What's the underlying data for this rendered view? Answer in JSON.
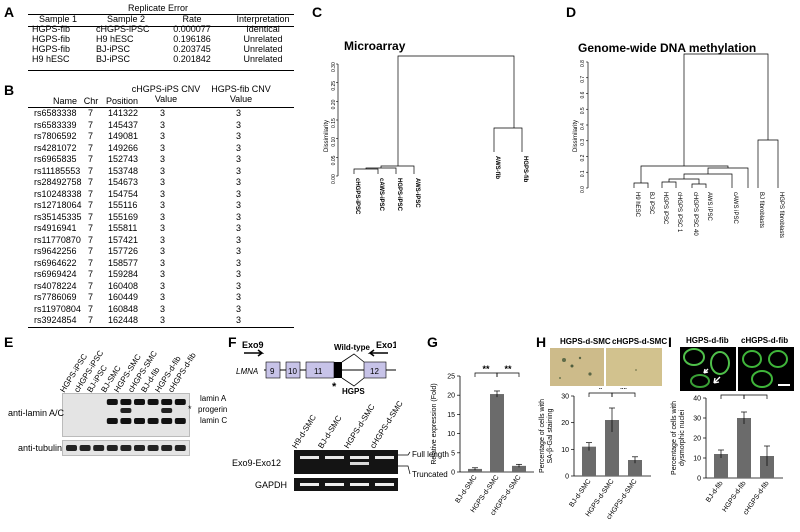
{
  "panels": {
    "a": "A",
    "b": "B",
    "c": "C",
    "d": "D",
    "e": "E",
    "f": "F",
    "g": "G",
    "h": "H",
    "i": "I"
  },
  "panel_a": {
    "title": "Replicate Error",
    "headers": [
      "Sample 1",
      "Sample 2",
      "Rate",
      "Interpretation"
    ],
    "rows": [
      [
        "HGPS-fib",
        "cHGPS-iPSC",
        "0.000077",
        "Identical"
      ],
      [
        "HGPS-fib",
        "H9 hESC",
        "0.196186",
        "Unrelated"
      ],
      [
        "HGPS-fib",
        "BJ-iPSC",
        "0.203745",
        "Unrelated"
      ],
      [
        "H9 hESC",
        "BJ-iPSC",
        "0.201842",
        "Unrelated"
      ]
    ]
  },
  "panel_b": {
    "headers": [
      "Name",
      "Chr",
      "Position",
      "cHGPS-iPS CNV Value",
      "HGPS-fib CNV Value"
    ],
    "rows": [
      [
        "rs6583338",
        "7",
        "141322",
        "3",
        "3"
      ],
      [
        "rs6583339",
        "7",
        "145437",
        "3",
        "3"
      ],
      [
        "rs7806592",
        "7",
        "149081",
        "3",
        "3"
      ],
      [
        "rs4281072",
        "7",
        "149266",
        "3",
        "3"
      ],
      [
        "rs6965835",
        "7",
        "152743",
        "3",
        "3"
      ],
      [
        "rs11185553",
        "7",
        "153748",
        "3",
        "3"
      ],
      [
        "rs28492758",
        "7",
        "154673",
        "3",
        "3"
      ],
      [
        "rs10248338",
        "7",
        "154754",
        "3",
        "3"
      ],
      [
        "rs12718064",
        "7",
        "155116",
        "3",
        "3"
      ],
      [
        "rs35145335",
        "7",
        "155169",
        "3",
        "3"
      ],
      [
        "rs4916941",
        "7",
        "155811",
        "3",
        "3"
      ],
      [
        "rs11770870",
        "7",
        "157421",
        "3",
        "3"
      ],
      [
        "rs9642256",
        "7",
        "157726",
        "3",
        "3"
      ],
      [
        "rs6964622",
        "7",
        "158577",
        "3",
        "3"
      ],
      [
        "rs6969424",
        "7",
        "159284",
        "3",
        "3"
      ],
      [
        "rs4078224",
        "7",
        "160408",
        "3",
        "3"
      ],
      [
        "rs7786069",
        "7",
        "160449",
        "3",
        "3"
      ],
      [
        "rs11970804",
        "7",
        "160848",
        "3",
        "3"
      ],
      [
        "rs3924854",
        "7",
        "162448",
        "3",
        "3"
      ]
    ]
  },
  "panel_c": {
    "title": "Microarray",
    "ylabel": "Dissimilarity",
    "yticks": [
      "0.00",
      "0.05",
      "0.10",
      "0.15",
      "0.20",
      "0.25",
      "0.30"
    ],
    "leaves": [
      "cHGPS-iPSC",
      "cAWS-iPSC",
      "HGPS-iPSC",
      "AWS-iPSC",
      "AWS-fib",
      "HGPS-fib"
    ]
  },
  "panel_d": {
    "title": "Genome-wide DNA methylation",
    "ylabel": "Dissimilarity",
    "yticks": [
      "0.0",
      "0.1",
      "0.2",
      "0.3",
      "0.4",
      "0.5",
      "0.6",
      "0.7",
      "0.8"
    ],
    "leaves": [
      "H9 hESC",
      "BJ iPSC",
      "HGPS iPSC",
      "cHGPS iPSC 1",
      "cHGPS iPSC 40",
      "AWS iPSC",
      "cAWS iPSC",
      "BJ fibroblasts",
      "HGPS fibroblasts"
    ]
  },
  "panel_e": {
    "lanes": [
      "HGPS-iPSC",
      "cHGPS-iPSC",
      "BJ-iPSC",
      "BJ-SMC",
      "HGPS-SMC",
      "cHGPS-SMC",
      "BJ-d-fib",
      "HGPS-d-fib",
      "cHGPS-d-fib"
    ],
    "row1": "anti-lamin A/C",
    "row2": "anti-tubulin",
    "band_lamin_a": "lamin A",
    "band_progerin": "progerin",
    "band_lamin_c": "lamin C",
    "star": "*"
  },
  "panel_f": {
    "gene": "LMNA",
    "exo9": "Exo9",
    "exo12": "Exo12",
    "wild_type": "Wild-type",
    "hgps": "HGPS",
    "star": "*",
    "exons": [
      "9",
      "10",
      "11",
      "12"
    ],
    "lanes": [
      "H9-d-SMC",
      "BJ-d-SMC",
      "HGPS-d-SMC",
      "cHGPS-d-SMC"
    ],
    "row1": "Exo9-Exo12",
    "row2": "GAPDH",
    "full_length": "Full length",
    "truncated": "Truncated"
  },
  "panel_h": {
    "img1_label": "HGPS-d-SMC",
    "img2_label": "cHGPS-d-SMC"
  },
  "panel_i": {
    "img1_label": "HGPS-d-fib",
    "img2_label": "cHGPS-d-fib"
  },
  "chart_data": [
    {
      "panel": "G",
      "type": "bar",
      "categories": [
        "BJ-d-SMC",
        "HGPS-d-SMC",
        "cHGPS-d-SMC"
      ],
      "values": [
        0.8,
        20.3,
        1.6
      ],
      "errors": [
        0.3,
        0.8,
        0.4
      ],
      "ylabel": "Relative expression (Fold)",
      "yticks": [
        0,
        5,
        10,
        15,
        20,
        25
      ],
      "ylim": [
        0,
        25
      ],
      "significance": [
        "**",
        "**"
      ]
    },
    {
      "panel": "H",
      "type": "bar",
      "categories": [
        "BJ-d-SMC",
        "HGPS-d-SMC",
        "cHGPS-d-SMC"
      ],
      "values": [
        11,
        21,
        6
      ],
      "errors": [
        1.5,
        4.5,
        1.2
      ],
      "ylabel": "Percentage of cells with SA-β-Gal staining",
      "yticks": [
        0,
        10,
        20,
        30
      ],
      "ylim": [
        0,
        30
      ],
      "significance": [
        "*",
        "**"
      ]
    },
    {
      "panel": "I",
      "type": "bar",
      "categories": [
        "BJ-d-fib",
        "HGPS-d-fib",
        "cHGPS-d-fib"
      ],
      "values": [
        12,
        30,
        11
      ],
      "errors": [
        2,
        3,
        5
      ],
      "ylabel": "Percentage of cells with dysmorphic nuclei",
      "yticks": [
        0,
        10,
        20,
        30,
        40
      ],
      "ylim": [
        0,
        40
      ],
      "significance": [
        "**",
        "**"
      ]
    }
  ]
}
